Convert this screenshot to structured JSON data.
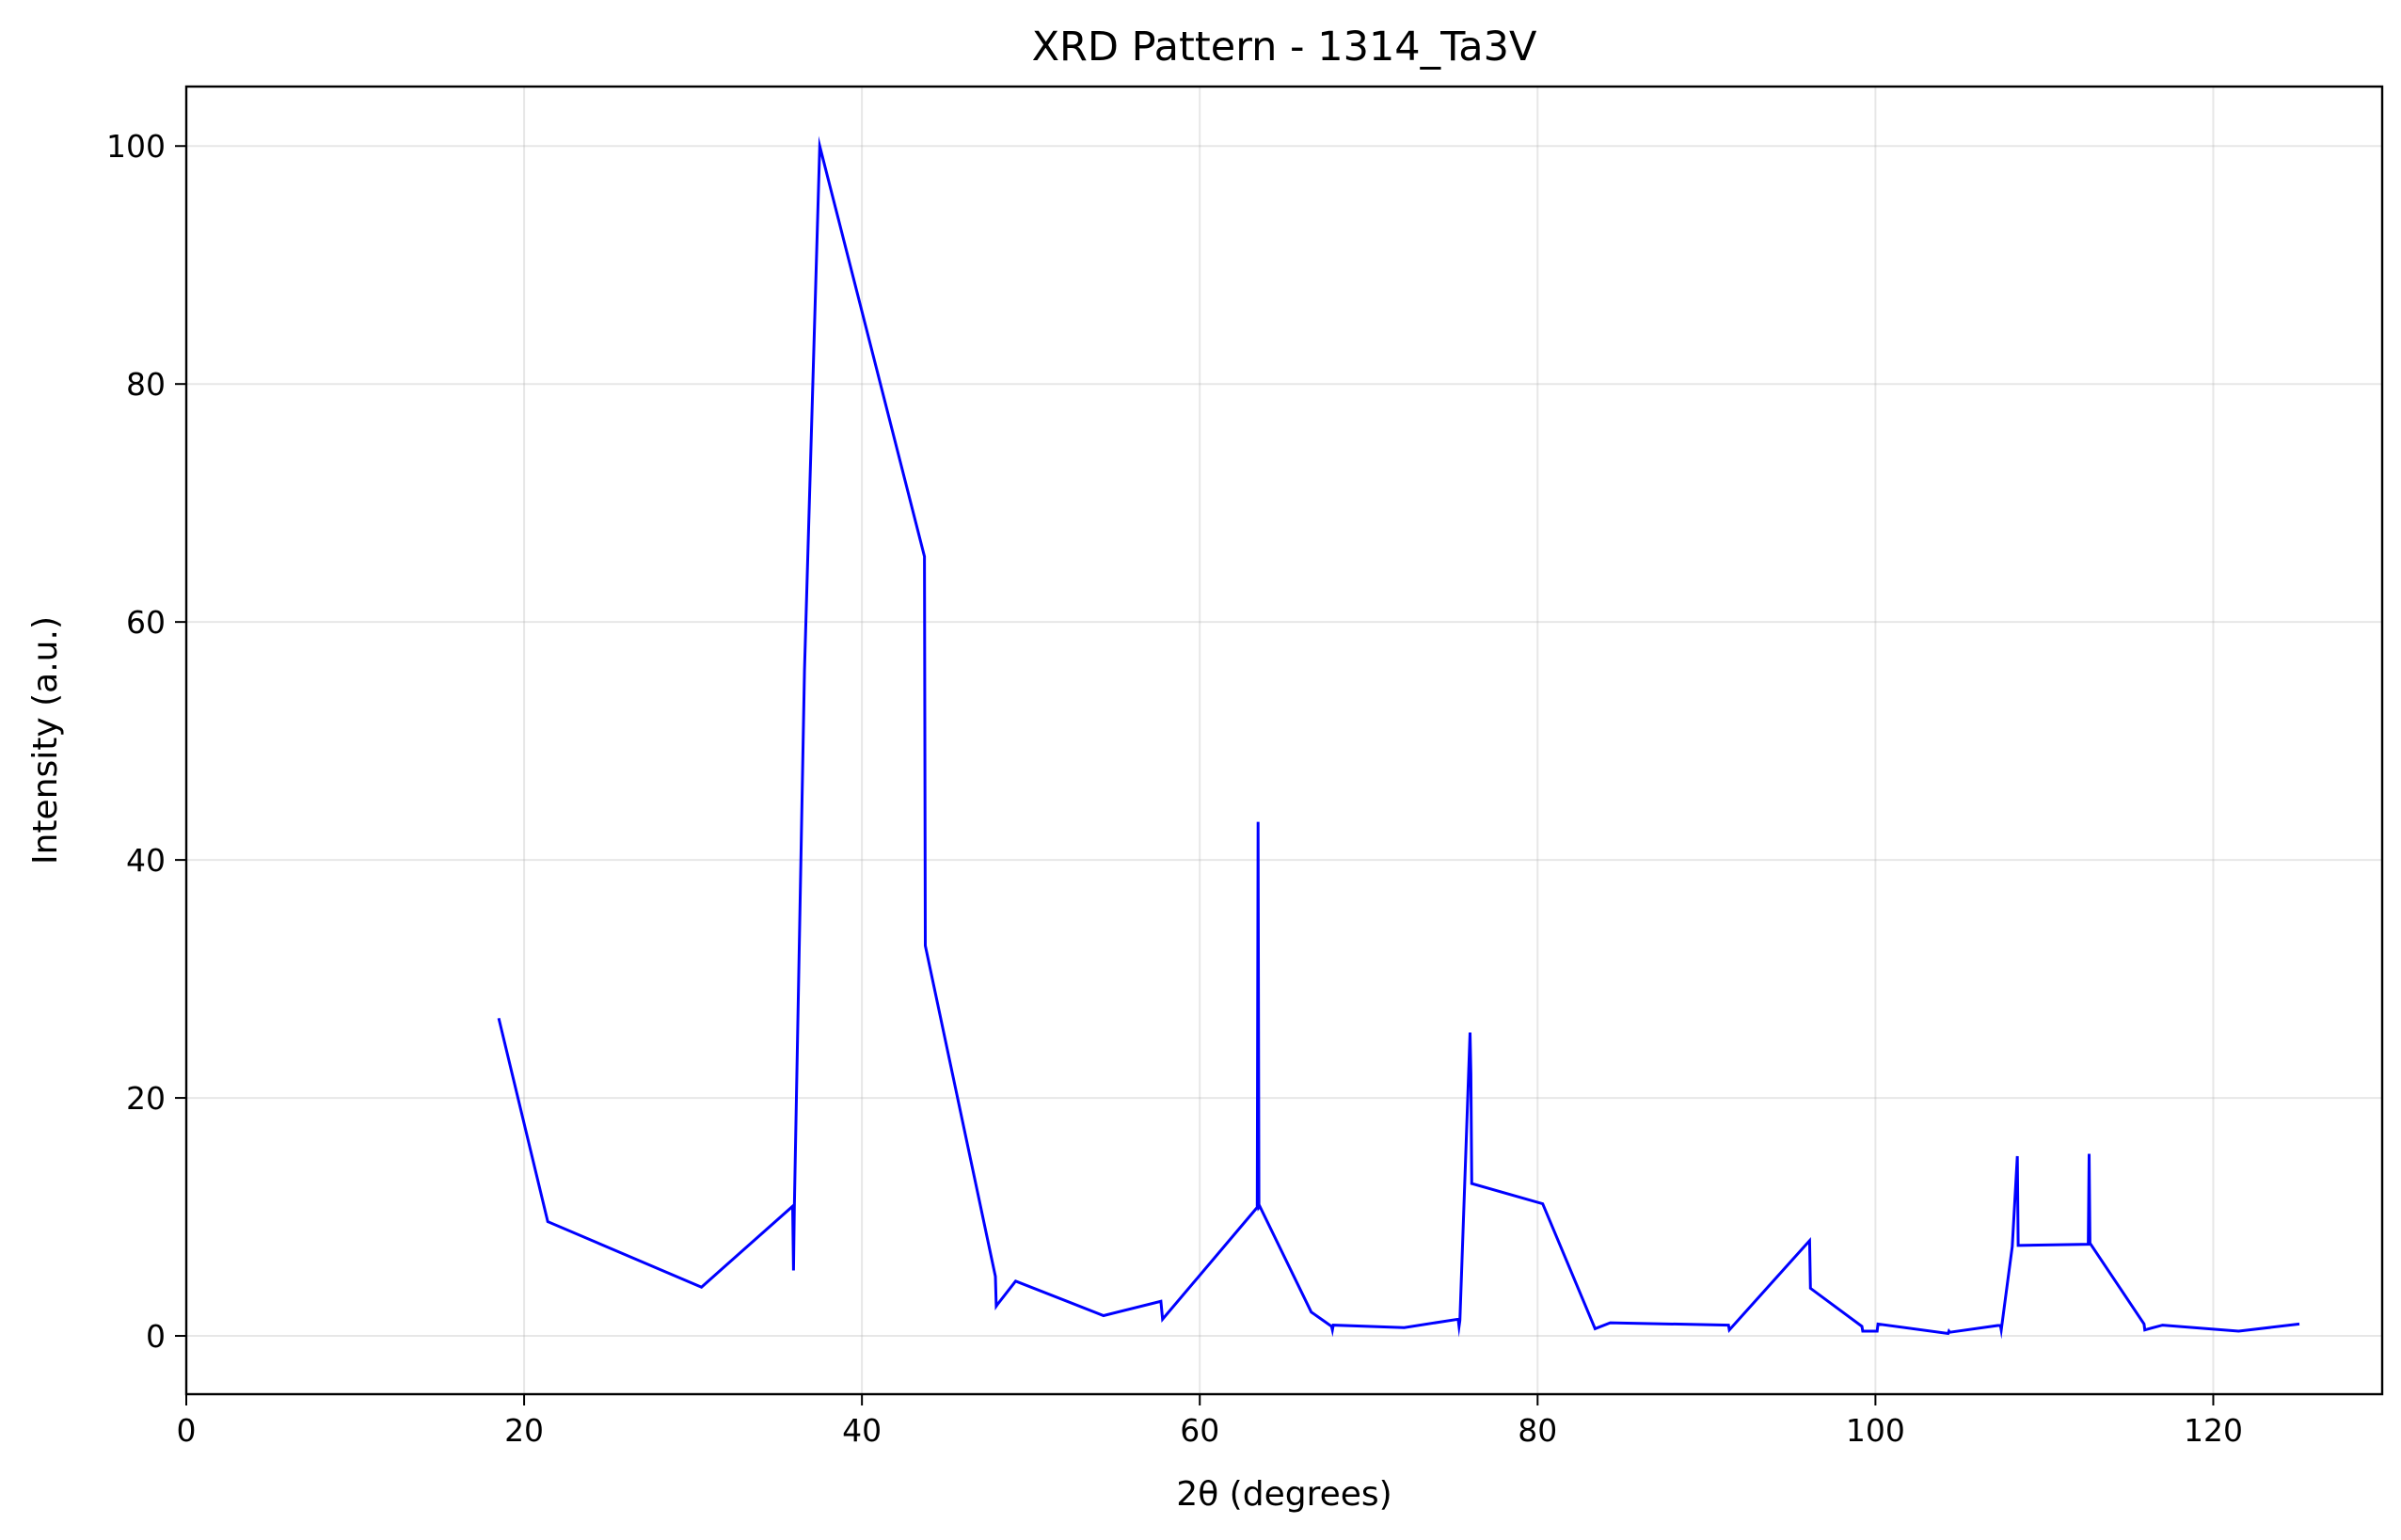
{
  "chart_data": {
    "type": "line",
    "title": "XRD Pattern - 1314_Ta3V",
    "xlabel": "2θ (degrees)",
    "ylabel": "Intensity (a.u.)",
    "xlim": [
      0,
      130
    ],
    "ylim": [
      -4.9,
      105
    ],
    "xticks": [
      0,
      20,
      40,
      60,
      80,
      100,
      120
    ],
    "yticks": [
      0,
      20,
      40,
      60,
      80,
      100
    ],
    "grid": true,
    "series": [
      {
        "color": "#0000ff",
        "x": [
          18.5,
          21.4,
          30.5,
          35.9,
          35.95,
          36.0,
          36.6,
          37.5,
          43.7,
          43.75,
          47.9,
          47.95,
          48.0,
          49.1,
          54.3,
          57.7,
          57.8,
          63.4,
          63.45,
          63.5,
          63.55,
          66.6,
          67.8,
          67.85,
          67.9,
          72.1,
          75.3,
          75.35,
          75.4,
          76.0,
          76.05,
          76.1,
          80.3,
          83.4,
          84.3,
          91.3,
          91.35,
          96.1,
          96.15,
          99.2,
          99.25,
          100.1,
          100.15,
          104.3,
          104.35,
          104.4,
          107.4,
          107.45,
          108.1,
          108.4,
          108.45,
          108.5,
          112.6,
          112.65,
          112.7,
          115.9,
          115.95,
          116.2,
          117.0,
          121.5,
          125.1
        ],
        "y": [
          26.7,
          9.6,
          4.1,
          10.9,
          5.5,
          10.8,
          56.0,
          100,
          65.5,
          32.8,
          5.0,
          2.5,
          2.6,
          4.6,
          1.7,
          2.9,
          1.4,
          10.8,
          43.2,
          10.8,
          10.9,
          2.0,
          0.8,
          0.5,
          0.9,
          0.7,
          1.4,
          0.8,
          1.3,
          25.5,
          22.0,
          12.8,
          11.1,
          0.6,
          1.1,
          0.9,
          0.5,
          8.0,
          4.0,
          0.8,
          0.4,
          0.4,
          1.0,
          0.2,
          0.4,
          0.3,
          0.9,
          0.5,
          7.5,
          15.1,
          7.6,
          7.6,
          7.7,
          15.3,
          7.8,
          1.0,
          0.5,
          0.6,
          0.9,
          0.4,
          1.0
        ]
      }
    ]
  }
}
